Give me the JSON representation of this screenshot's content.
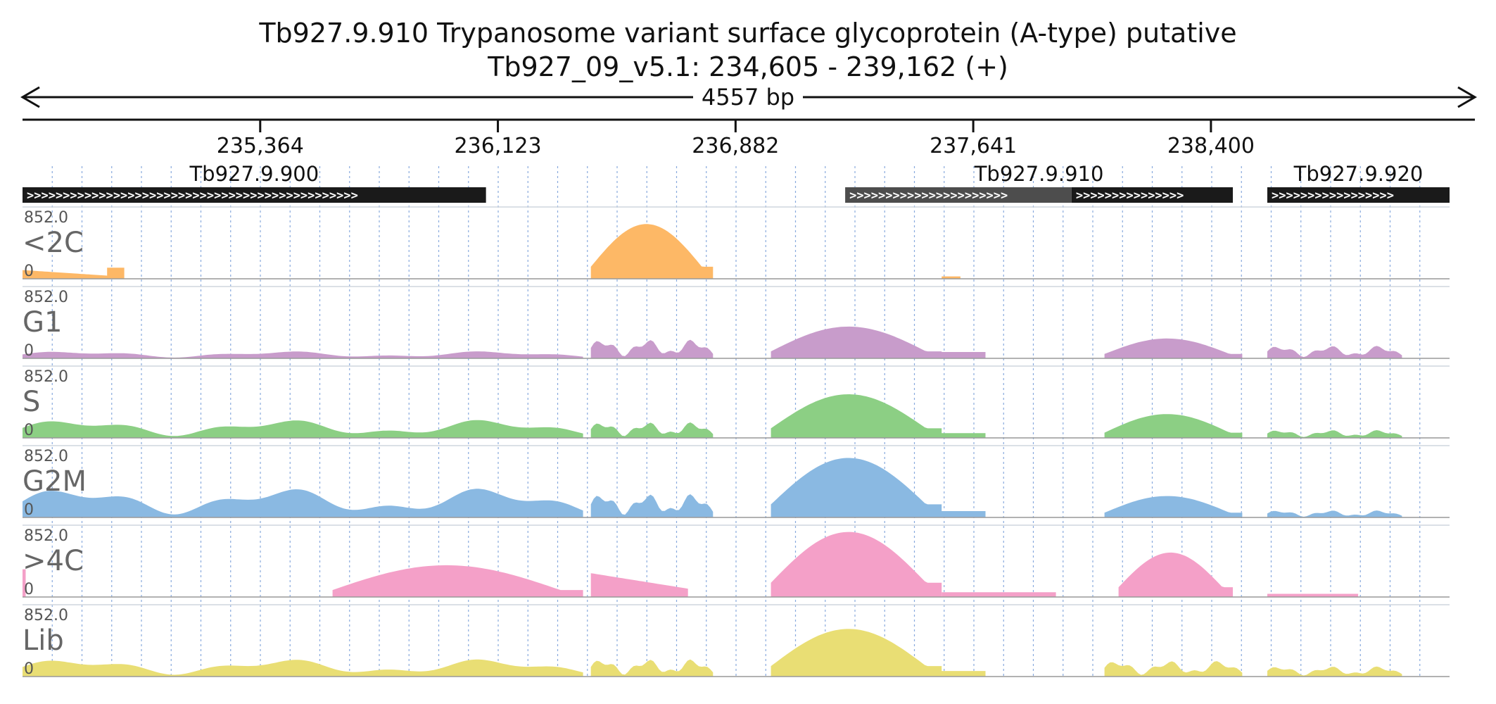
{
  "header": {
    "title": "Tb927.9.910  Trypanosome variant surface glycoprotein (A-type)  putative",
    "locus": "Tb927_09_v5.1: 234,605 - 239,162 (+)",
    "span": "4557 bp"
  },
  "colors": {
    "c2C": "#fdb866",
    "G1": "#c89ccb",
    "S": "#8ccf84",
    "G2M": "#8ab9e2",
    "c4C": "#f4a0c8",
    "Lib": "#e9de74",
    "gene_fill": "#1a1a1a",
    "gene_fill_partial": "#4d4d4d",
    "grid": "#88aadd"
  },
  "chart_data": {
    "type": "area",
    "xlim": [
      234605,
      239162
    ],
    "ylim": [
      0,
      852.0
    ],
    "ticks": [
      {
        "pos": 235364,
        "label": "235,364"
      },
      {
        "pos": 236123,
        "label": "236,123"
      },
      {
        "pos": 236882,
        "label": "236,882"
      },
      {
        "pos": 237641,
        "label": "237,641"
      },
      {
        "pos": 238400,
        "label": "238,400"
      }
    ],
    "genes": [
      {
        "name": "Tb927.9.900",
        "segments": [
          {
            "start": 234605,
            "end": 236085,
            "partial": false
          }
        ]
      },
      {
        "name": "Tb927.9.910",
        "segments": [
          {
            "start": 237232,
            "end": 237955,
            "partial": true
          },
          {
            "start": 237955,
            "end": 238470,
            "partial": false
          }
        ]
      },
      {
        "name": "Tb927.9.920",
        "segments": [
          {
            "start": 238580,
            "end": 239162,
            "partial": false
          }
        ]
      }
    ],
    "series": [
      {
        "name": "<2C",
        "color_key": "c2C",
        "scale_max": "852.0",
        "scale_min": "0",
        "regions": [
          {
            "start": 234605,
            "end": 234880,
            "peak": 110,
            "shape": "decline"
          },
          {
            "start": 234880,
            "end": 234880,
            "peak": 0,
            "shape": "flat"
          },
          {
            "start": 234875,
            "end": 234880,
            "peak": 0,
            "shape": "flat"
          },
          {
            "start": 234875,
            "end": 234930,
            "peak": 140,
            "shape": "flat"
          },
          {
            "start": 236420,
            "end": 236810,
            "peak": 690,
            "shape": "hump"
          },
          {
            "start": 237540,
            "end": 237600,
            "peak": 30,
            "shape": "flat"
          }
        ]
      },
      {
        "name": "G1",
        "color_key": "G1",
        "scale_max": "852.0",
        "scale_min": "0",
        "regions": [
          {
            "start": 234605,
            "end": 236395,
            "peak": 90,
            "shape": "wavy"
          },
          {
            "start": 236420,
            "end": 236810,
            "peak": 240,
            "shape": "wavy"
          },
          {
            "start": 236995,
            "end": 237540,
            "peak": 400,
            "shape": "hump"
          },
          {
            "start": 237510,
            "end": 237680,
            "peak": 80,
            "shape": "flat"
          },
          {
            "start": 238060,
            "end": 238500,
            "peak": 250,
            "shape": "hump"
          },
          {
            "start": 238580,
            "end": 239010,
            "peak": 160,
            "shape": "wavy"
          }
        ]
      },
      {
        "name": "S",
        "color_key": "S",
        "scale_max": "852.0",
        "scale_min": "0",
        "regions": [
          {
            "start": 234605,
            "end": 236395,
            "peak": 230,
            "shape": "wavy"
          },
          {
            "start": 236420,
            "end": 236810,
            "peak": 200,
            "shape": "wavy"
          },
          {
            "start": 236995,
            "end": 237540,
            "peak": 550,
            "shape": "hump"
          },
          {
            "start": 237510,
            "end": 237680,
            "peak": 60,
            "shape": "flat"
          },
          {
            "start": 238060,
            "end": 238500,
            "peak": 300,
            "shape": "hump"
          },
          {
            "start": 238580,
            "end": 239010,
            "peak": 100,
            "shape": "wavy"
          }
        ]
      },
      {
        "name": "G2M",
        "color_key": "G2M",
        "scale_max": "852.0",
        "scale_min": "0",
        "regions": [
          {
            "start": 234605,
            "end": 236395,
            "peak": 370,
            "shape": "wavy"
          },
          {
            "start": 236420,
            "end": 236810,
            "peak": 300,
            "shape": "wavy"
          },
          {
            "start": 236995,
            "end": 237540,
            "peak": 750,
            "shape": "hump"
          },
          {
            "start": 237510,
            "end": 237680,
            "peak": 80,
            "shape": "flat"
          },
          {
            "start": 238060,
            "end": 238500,
            "peak": 270,
            "shape": "hump"
          },
          {
            "start": 238580,
            "end": 239010,
            "peak": 90,
            "shape": "wavy"
          }
        ]
      },
      {
        "name": ">4C",
        "color_key": "c4C",
        "scale_max": "852.0",
        "scale_min": "0",
        "regions": [
          {
            "start": 234605,
            "end": 234615,
            "peak": 350,
            "shape": "flat"
          },
          {
            "start": 235595,
            "end": 236395,
            "peak": 400,
            "shape": "hump"
          },
          {
            "start": 236420,
            "end": 236730,
            "peak": 300,
            "shape": "decline"
          },
          {
            "start": 236995,
            "end": 237540,
            "peak": 820,
            "shape": "hump"
          },
          {
            "start": 237540,
            "end": 237905,
            "peak": 60,
            "shape": "flat"
          },
          {
            "start": 238105,
            "end": 238470,
            "peak": 560,
            "shape": "hump"
          },
          {
            "start": 238580,
            "end": 238870,
            "peak": 40,
            "shape": "flat"
          }
        ]
      },
      {
        "name": "Lib",
        "color_key": "Lib",
        "scale_max": "852.0",
        "scale_min": "0",
        "regions": [
          {
            "start": 234605,
            "end": 236395,
            "peak": 220,
            "shape": "wavy"
          },
          {
            "start": 236420,
            "end": 236810,
            "peak": 220,
            "shape": "wavy"
          },
          {
            "start": 236995,
            "end": 237540,
            "peak": 600,
            "shape": "hump"
          },
          {
            "start": 237510,
            "end": 237680,
            "peak": 70,
            "shape": "flat"
          },
          {
            "start": 238060,
            "end": 238500,
            "peak": 200,
            "shape": "wavy"
          },
          {
            "start": 238580,
            "end": 239010,
            "peak": 130,
            "shape": "wavy"
          }
        ]
      }
    ]
  }
}
